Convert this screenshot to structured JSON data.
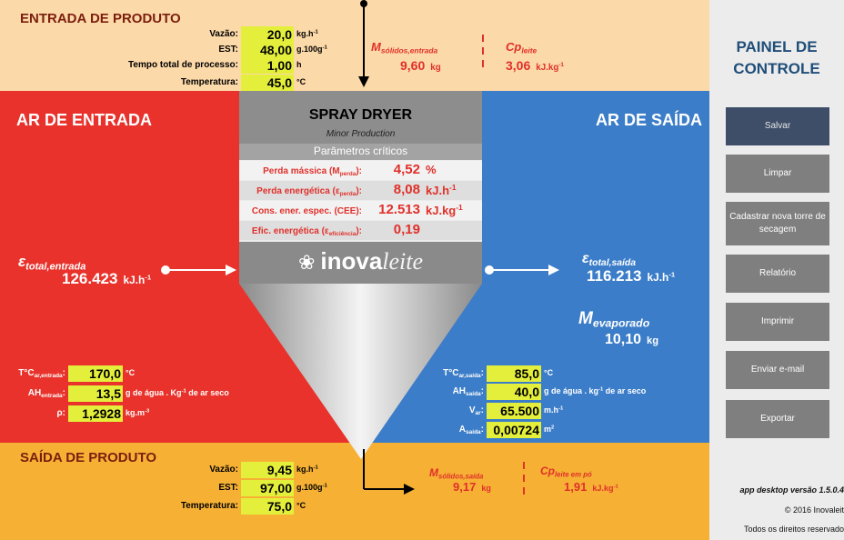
{
  "entrada_produto": {
    "title": "ENTRADA DE PRODUTO",
    "fields": [
      {
        "label": "Vazão:",
        "value": "20,0",
        "unit": "kg.h",
        "unit_sup": "-1"
      },
      {
        "label": "EST:",
        "value": "48,00",
        "unit": "g.100g",
        "unit_sup": "-1"
      },
      {
        "label": "Tempo total de processo:",
        "value": "1,00",
        "unit": "h"
      },
      {
        "label": "Temperatura:",
        "value": "45,0",
        "unit": "°C"
      }
    ],
    "massa": {
      "symbol": "M",
      "sub": "sólidos,entrada",
      "value": "9,60",
      "unit": "kg"
    },
    "cp": {
      "symbol": "Cp",
      "sub": "leite",
      "value": "3,06",
      "unit": "kJ.kg",
      "unit_sup": "-1"
    }
  },
  "spray_dryer": {
    "title": "SPRAY DRYER",
    "subtitle": "Minor Production",
    "section": "Parâmetros críticos",
    "params": [
      {
        "label": "Perda mássica (M",
        "label_sub": "perda",
        "label_end": "):",
        "value": "4,52",
        "unit": "%"
      },
      {
        "label": "Perda energética (ε",
        "label_sub": "perda",
        "label_end": "):",
        "value": "8,08",
        "unit": "kJ.h",
        "unit_sup": "-1"
      },
      {
        "label": "Cons. ener. espec. (CEE):",
        "value": "12.513",
        "unit": "kJ.kg",
        "unit_sup": "-1"
      },
      {
        "label": "Efic. energética (ε",
        "label_sub": "eficiência",
        "label_end": "):",
        "value": "0,19"
      }
    ],
    "logo": {
      "part1": "inova",
      "part2": "leite"
    }
  },
  "ar_entrada": {
    "title": "AR DE ENTRADA",
    "energia": {
      "symbol": "ε",
      "sub": "total,entrada",
      "value": "126.423",
      "unit": "kJ.h",
      "unit_sup": "-1"
    },
    "fields": [
      {
        "label": "T°C",
        "label_sub": "ar,entrada",
        "label_end": ":",
        "value": "170,0",
        "unit": "°C"
      },
      {
        "label": "AH",
        "label_sub": "entrada",
        "label_end": ":",
        "value": "13,5",
        "unit": "g de água . Kg",
        "unit_sup": "-1",
        "unit_end": " de ar seco"
      },
      {
        "label": "ρ:",
        "value": "1,2928",
        "unit": "kg.m",
        "unit_sup": "-3"
      }
    ]
  },
  "ar_saida": {
    "title": "AR DE SAÍDA",
    "energia": {
      "symbol": "ε",
      "sub": "total,saída",
      "value": "116.213",
      "unit": "kJ.h",
      "unit_sup": "-1"
    },
    "massa_evaporada": {
      "symbol": "M",
      "sub": "evaporado",
      "value": "10,10",
      "unit": "kg"
    },
    "fields": [
      {
        "label": "T°C",
        "label_sub": "ar,saída",
        "label_end": ":",
        "value": "85,0",
        "unit": "°C"
      },
      {
        "label": "AH",
        "label_sub": "saída",
        "label_end": ":",
        "value": "40,0",
        "unit": "g de água . kg",
        "unit_sup": "-1",
        "unit_end": " de ar seco"
      },
      {
        "label": "V",
        "label_sub": "ar",
        "label_end": ":",
        "value": "65.500",
        "unit": "m.h",
        "unit_sup": "-1"
      },
      {
        "label": "A",
        "label_sub": "saída",
        "label_end": ":",
        "value": "0,00724",
        "unit": "m",
        "unit_sup": "2"
      }
    ]
  },
  "saida_produto": {
    "title": "SAÍDA DE PRODUTO",
    "fields": [
      {
        "label": "Vazão:",
        "value": "9,45",
        "unit": "kg.h",
        "unit_sup": "-1"
      },
      {
        "label": "EST:",
        "value": "97,00",
        "unit": "g.100g",
        "unit_sup": "-1"
      },
      {
        "label": "Temperatura:",
        "value": "75,0",
        "unit": "°C"
      }
    ],
    "massa": {
      "symbol": "M",
      "sub": "sólidos,saída",
      "value": "9,17",
      "unit": "kg"
    },
    "cp": {
      "symbol": "Cp",
      "sub": "leite em pó",
      "value": "1,91",
      "unit": "kJ.kg",
      "unit_sup": "-1"
    }
  },
  "painel": {
    "title_lines": [
      "PAINEL DE",
      "CONTROLE"
    ],
    "buttons": [
      "Salvar",
      "Limpar",
      "Cadastrar nova torre de secagem",
      "Relatório",
      "Imprimir",
      "Enviar e-mail",
      "Exportar"
    ],
    "footer": [
      "app desktop versão 1.5.0.4",
      "© 2016 Inovaleit",
      "Todos os direitos reservado"
    ]
  }
}
